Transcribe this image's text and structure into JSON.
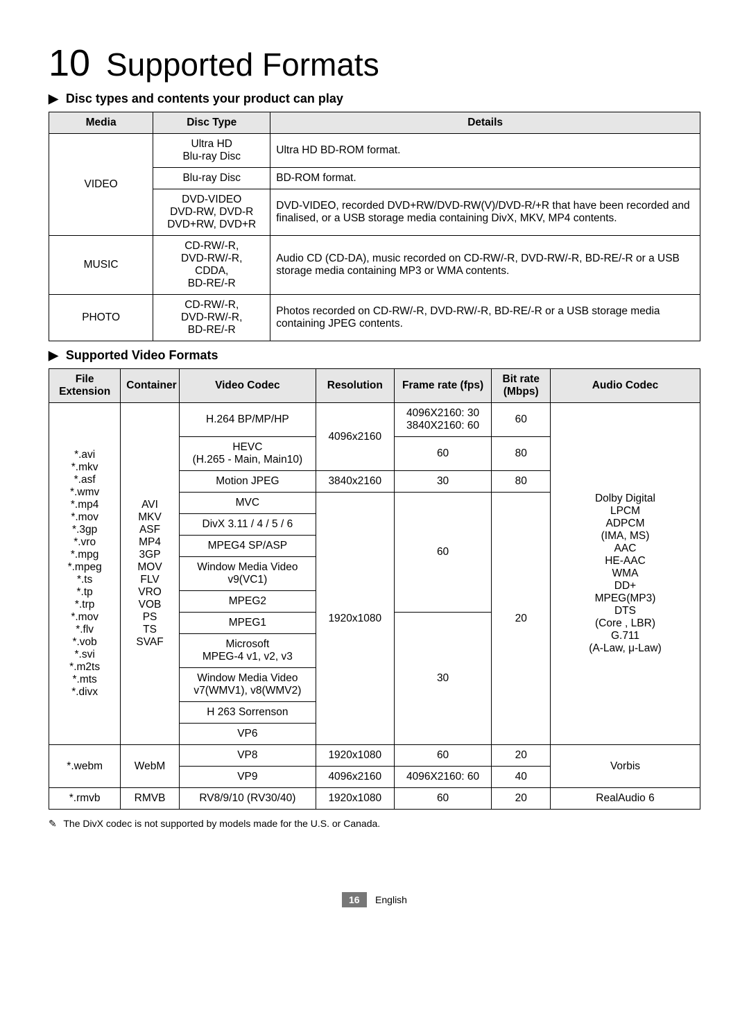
{
  "section": {
    "num": "10",
    "title": "Supported Formats"
  },
  "discSection": {
    "heading": "Disc types and contents your product can play",
    "headers": [
      "Media",
      "Disc Type",
      "Details"
    ],
    "rows": [
      {
        "media": "VIDEO",
        "types": [
          {
            "type": "Ultra HD\nBlu-ray Disc",
            "detail": "Ultra HD BD-ROM format."
          },
          {
            "type": "Blu-ray Disc",
            "detail": "BD-ROM format."
          },
          {
            "type": "DVD-VIDEO\nDVD-RW, DVD-R\nDVD+RW, DVD+R",
            "detail": "DVD-VIDEO, recorded DVD+RW/DVD-RW(V)/DVD-R/+R that have been recorded and finalised, or a USB storage media containing DivX, MKV, MP4 contents."
          }
        ]
      },
      {
        "media": "MUSIC",
        "types": [
          {
            "type": "CD-RW/-R,\nDVD-RW/-R,\nCDDA,\nBD-RE/-R",
            "detail": "Audio CD (CD-DA), music recorded on CD-RW/-R, DVD-RW/-R, BD-RE/-R or a USB storage media containing MP3 or WMA contents."
          }
        ]
      },
      {
        "media": "PHOTO",
        "types": [
          {
            "type": "CD-RW/-R,\nDVD-RW/-R,\nBD-RE/-R",
            "detail": "Photos recorded on CD-RW/-R, DVD-RW/-R, BD-RE/-R or a USB storage media containing JPEG contents."
          }
        ]
      }
    ]
  },
  "videoSection": {
    "heading": "Supported Video Formats",
    "headers": [
      "File Extension",
      "Container",
      "Video Codec",
      "Resolution",
      "Frame rate (fps)",
      "Bit rate (Mbps)",
      "Audio Codec"
    ],
    "colWidths": [
      "11%",
      "9%",
      "21%",
      "12%",
      "15%",
      "9%",
      "23%"
    ],
    "block1": {
      "ext": "*.avi\n*.mkv\n*.asf\n*.wmv\n*.mp4\n*.mov\n*.3gp\n*.vro\n*.mpg\n*.mpeg\n*.ts\n*.tp\n*.trp\n*.mov\n*.flv\n*.vob\n*.svi\n*.m2ts\n*.mts\n*.divx",
      "container": "AVI\nMKV\nASF\nMP4\n3GP\nMOV\nFLV\nVRO\nVOB\nPS\nTS\nSVAF",
      "audio": "Dolby Digital\nLPCM\nADPCM\n(IMA, MS)\nAAC\nHE-AAC\nWMA\nDD+\nMPEG(MP3)\nDTS\n(Core , LBR)\nG.711\n(A-Law, μ-Law)",
      "rows": [
        {
          "codec": "H.264 BP/MP/HP",
          "res": "4096x2160",
          "resSpan": 2,
          "fps": "4096X2160: 30\n3840X2160: 60",
          "br": "60"
        },
        {
          "codec": "HEVC\n(H.265 - Main, Main10)",
          "fps": "60",
          "br": "80"
        },
        {
          "codec": "Motion JPEG",
          "res": "3840x2160",
          "resSpan": 1,
          "fps": "30",
          "br": "80"
        },
        {
          "codec": "MVC",
          "res": "1920x1080",
          "resSpan": 10,
          "fps": "60",
          "fpsSpan": 5,
          "br": "20",
          "brSpan": 10
        },
        {
          "codec": "DivX 3.11 / 4 / 5 / 6"
        },
        {
          "codec": "MPEG4 SP/ASP"
        },
        {
          "codec": "Window Media Video\nv9(VC1)"
        },
        {
          "codec": "MPEG2"
        },
        {
          "codec": "MPEG1",
          "fps": "30",
          "fpsSpan": 5
        },
        {
          "codec": "Microsoft\nMPEG-4 v1, v2, v3"
        },
        {
          "codec": "Window Media Video\nv7(WMV1), v8(WMV2)"
        },
        {
          "codec": "H 263 Sorrenson"
        },
        {
          "codec": "VP6"
        }
      ]
    },
    "webm": {
      "ext": "*.webm",
      "container": "WebM",
      "audio": "Vorbis",
      "rows": [
        {
          "codec": "VP8",
          "res": "1920x1080",
          "fps": "60",
          "br": "20"
        },
        {
          "codec": "VP9",
          "res": "4096x2160",
          "fps": "4096X2160: 60",
          "br": "40"
        }
      ]
    },
    "rmvb": {
      "ext": "*.rmvb",
      "container": "RMVB",
      "codec": "RV8/9/10 (RV30/40)",
      "res": "1920x1080",
      "fps": "60",
      "br": "20",
      "audio": "RealAudio 6"
    }
  },
  "note": "The DivX codec is not supported by models made for the U.S. or Canada.",
  "footer": {
    "page": "16",
    "lang": "English"
  }
}
